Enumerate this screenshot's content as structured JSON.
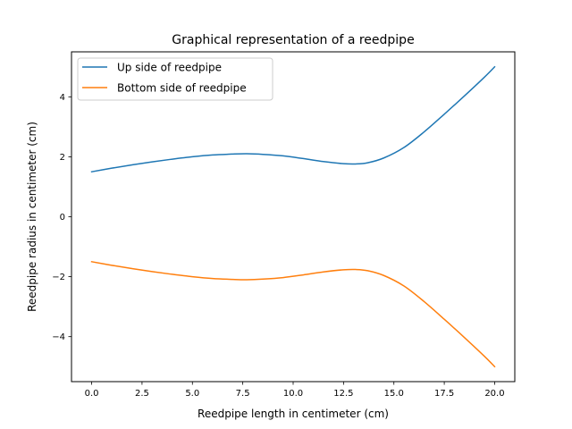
{
  "chart_data": {
    "type": "line",
    "title": "Graphical representation of a reedpipe",
    "xlabel": "Reedpipe length in centimeter (cm)",
    "ylabel": "Reedpipe radius in centimeter (cm)",
    "xlim": [
      -1,
      21
    ],
    "ylim": [
      -5.5,
      5.5
    ],
    "xticks": [
      0,
      2.5,
      5,
      7.5,
      10,
      12.5,
      15,
      17.5,
      20
    ],
    "xtick_labels": [
      "0.0",
      "2.5",
      "5.0",
      "7.5",
      "10.0",
      "12.5",
      "15.0",
      "17.5",
      "20.0"
    ],
    "yticks": [
      -4,
      -2,
      0,
      2,
      4
    ],
    "ytick_labels": [
      "−4",
      "−2",
      "0",
      "2",
      "4"
    ],
    "grid": false,
    "legend_position": "upper-left",
    "series": [
      {
        "name": "Up side of reedpipe",
        "color": "#1f77b4",
        "x": [
          0,
          1,
          2,
          3,
          4,
          5,
          6,
          7,
          7.7,
          8.5,
          9.5,
          10.5,
          11.5,
          12.5,
          13.1,
          13.7,
          14.5,
          15.5,
          16.5,
          17.5,
          18.5,
          19.5,
          20
        ],
        "y": [
          1.5,
          1.62,
          1.73,
          1.83,
          1.92,
          2.0,
          2.06,
          2.09,
          2.1,
          2.08,
          2.03,
          1.94,
          1.84,
          1.77,
          1.76,
          1.8,
          1.96,
          2.31,
          2.83,
          3.42,
          4.03,
          4.66,
          5.0
        ]
      },
      {
        "name": "Bottom side of reedpipe",
        "color": "#ff7f0e",
        "x": [
          0,
          1,
          2,
          3,
          4,
          5,
          6,
          7,
          7.7,
          8.5,
          9.5,
          10.5,
          11.5,
          12.5,
          13.1,
          13.7,
          14.5,
          15.5,
          16.5,
          17.5,
          18.5,
          19.5,
          20
        ],
        "y": [
          -1.5,
          -1.62,
          -1.73,
          -1.83,
          -1.92,
          -2.0,
          -2.06,
          -2.09,
          -2.1,
          -2.08,
          -2.03,
          -1.94,
          -1.84,
          -1.77,
          -1.76,
          -1.8,
          -1.96,
          -2.31,
          -2.83,
          -3.42,
          -4.03,
          -4.66,
          -5.0
        ]
      }
    ]
  }
}
